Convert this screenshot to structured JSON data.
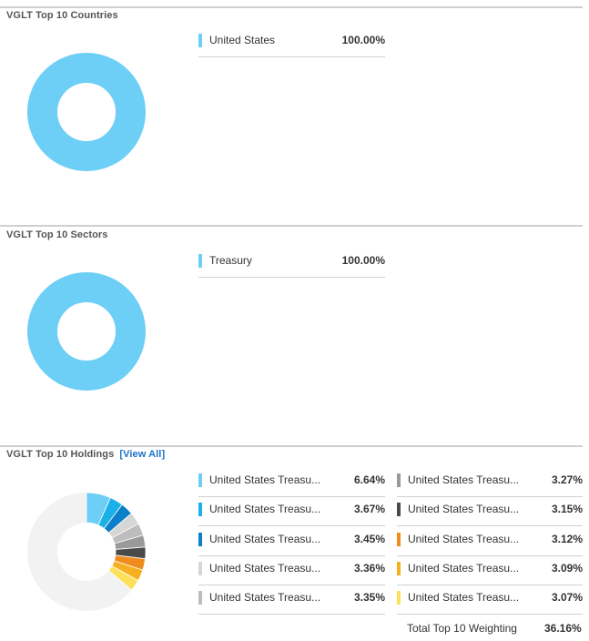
{
  "countries": {
    "title": "VGLT Top 10 Countries",
    "items": [
      {
        "label": "United States",
        "value": "100.00%",
        "pct": 100,
        "color": "#6dcff6"
      }
    ]
  },
  "sectors": {
    "title": "VGLT Top 10 Sectors",
    "items": [
      {
        "label": "Treasury",
        "value": "100.00%",
        "pct": 100,
        "color": "#6dcff6"
      }
    ]
  },
  "holdings": {
    "title": "VGLT Top 10 Holdings",
    "view_all": "[View All]",
    "items": [
      {
        "label": "United States Treasu...",
        "value": "6.64%",
        "pct": 6.64,
        "color": "#6dcff6"
      },
      {
        "label": "United States Treasu...",
        "value": "3.67%",
        "pct": 3.67,
        "color": "#1ab0e8"
      },
      {
        "label": "United States Treasu...",
        "value": "3.45%",
        "pct": 3.45,
        "color": "#0b7fc7"
      },
      {
        "label": "United States Treasu...",
        "value": "3.36%",
        "pct": 3.36,
        "color": "#d6d6d6"
      },
      {
        "label": "United States Treasu...",
        "value": "3.35%",
        "pct": 3.35,
        "color": "#bdbdbd"
      },
      {
        "label": "United States Treasu...",
        "value": "3.27%",
        "pct": 3.27,
        "color": "#9a9a9a"
      },
      {
        "label": "United States Treasu...",
        "value": "3.15%",
        "pct": 3.15,
        "color": "#4a4a4a"
      },
      {
        "label": "United States Treasu...",
        "value": "3.12%",
        "pct": 3.12,
        "color": "#f08c1e"
      },
      {
        "label": "United States Treasu...",
        "value": "3.09%",
        "pct": 3.09,
        "color": "#f5b01f"
      },
      {
        "label": "United States Treasu...",
        "value": "3.07%",
        "pct": 3.07,
        "color": "#fde15a"
      }
    ],
    "remainder_color": "#f2f2f2",
    "total_label": "Total Top 10 Weighting",
    "total_value": "36.16%"
  }
}
